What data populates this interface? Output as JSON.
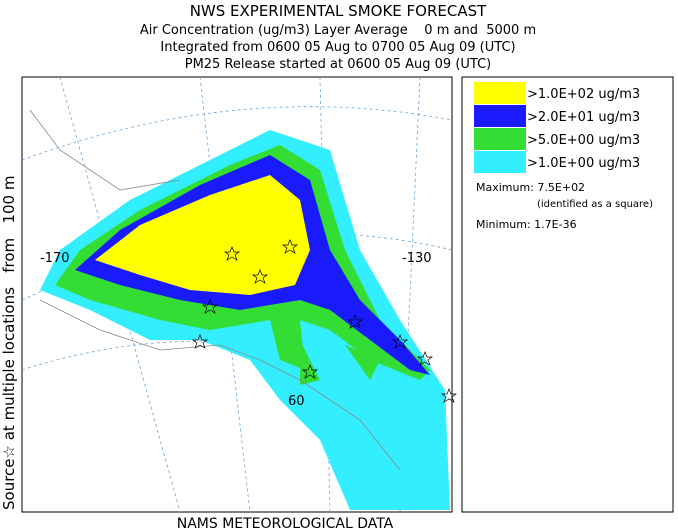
{
  "header": {
    "title": "NWS EXPERIMENTAL SMOKE FORECAST",
    "lines": [
      "Air Concentration (ug/m3) Layer Average    0 m and  5000 m",
      "Integrated from 0600 05 Aug to 0700 05 Aug 09 (UTC)",
      "PM25 Release started at 0600 05 Aug 09 (UTC)"
    ]
  },
  "side_label": "Source☆ at multiple locations   from   100 m",
  "footer": "NAMS METEOROLOGICAL DATA",
  "map": {
    "grid_labels": [
      "-170",
      "-130",
      "60"
    ]
  },
  "legend": {
    "entries": [
      {
        "label": ">1.0E+02 ug/m3",
        "color": "#ffff00"
      },
      {
        "label": ">2.0E+01 ug/m3",
        "color": "#1a1aff"
      },
      {
        "label": ">5.0E+00 ug/m3",
        "color": "#33dd33"
      },
      {
        "label": ">1.0E+00 ug/m3",
        "color": "#33eeff"
      }
    ],
    "maximum": "Maximum: 7.5E+02",
    "maximum_note": "(identified as a square)",
    "minimum": "Minimum: 1.7E-36"
  }
}
